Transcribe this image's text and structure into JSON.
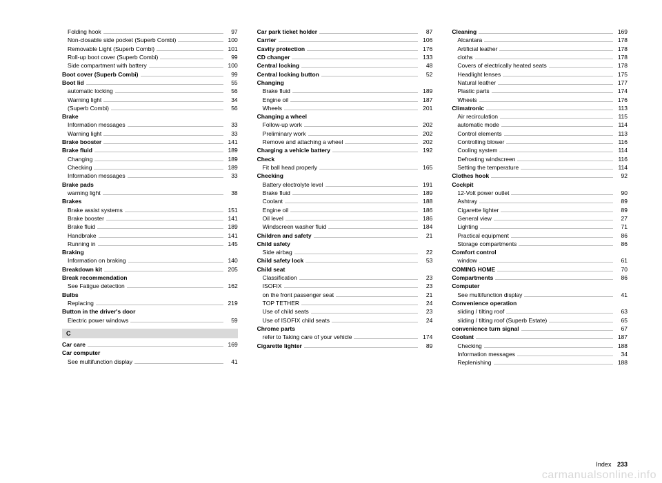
{
  "footer": {
    "label": "Index",
    "page": "233"
  },
  "watermark": "carmanualsonline.info",
  "section_letter": "C",
  "columns": [
    [
      {
        "label": "Folding hook",
        "page": "97",
        "bold": false,
        "sub": true
      },
      {
        "label": "Non-closable side pocket (Superb Combi)",
        "page": "100",
        "bold": false,
        "sub": true
      },
      {
        "label": "Removable Light (Superb Combi)",
        "page": "101",
        "bold": false,
        "sub": true
      },
      {
        "label": "Roll-up boot cover (Superb Combi)",
        "page": "99",
        "bold": false,
        "sub": true
      },
      {
        "label": "Side compartment with battery",
        "page": "100",
        "bold": false,
        "sub": true
      },
      {
        "label": "Boot cover (Superb Combi)",
        "page": "99",
        "bold": true,
        "sub": false
      },
      {
        "label": "Boot lid",
        "page": "55",
        "bold": true,
        "sub": false
      },
      {
        "label": "automatic locking",
        "page": "56",
        "bold": false,
        "sub": true
      },
      {
        "label": "Warning light",
        "page": "34",
        "bold": false,
        "sub": true
      },
      {
        "label": "(Superb Combi)",
        "page": "56",
        "bold": false,
        "sub": true
      },
      {
        "label": "Brake",
        "page": "",
        "bold": true,
        "sub": false
      },
      {
        "label": "Information messages",
        "page": "33",
        "bold": false,
        "sub": true
      },
      {
        "label": "Warning light",
        "page": "33",
        "bold": false,
        "sub": true
      },
      {
        "label": "Brake booster",
        "page": "141",
        "bold": true,
        "sub": false
      },
      {
        "label": "Brake fluid",
        "page": "189",
        "bold": true,
        "sub": false
      },
      {
        "label": "Changing",
        "page": "189",
        "bold": false,
        "sub": true
      },
      {
        "label": "Checking",
        "page": "189",
        "bold": false,
        "sub": true
      },
      {
        "label": "Information messages",
        "page": "33",
        "bold": false,
        "sub": true
      },
      {
        "label": "Brake pads",
        "page": "",
        "bold": true,
        "sub": false
      },
      {
        "label": "warning light",
        "page": "38",
        "bold": false,
        "sub": true
      },
      {
        "label": "Brakes",
        "page": "",
        "bold": true,
        "sub": false
      },
      {
        "label": "Brake assist systems",
        "page": "151",
        "bold": false,
        "sub": true
      },
      {
        "label": "Brake booster",
        "page": "141",
        "bold": false,
        "sub": true
      },
      {
        "label": "Brake fluid",
        "page": "189",
        "bold": false,
        "sub": true
      },
      {
        "label": "Handbrake",
        "page": "141",
        "bold": false,
        "sub": true
      },
      {
        "label": "Running in",
        "page": "145",
        "bold": false,
        "sub": true
      },
      {
        "label": "Braking",
        "page": "",
        "bold": true,
        "sub": false
      },
      {
        "label": "Information on braking",
        "page": "140",
        "bold": false,
        "sub": true
      },
      {
        "label": "Breakdown kit",
        "page": "205",
        "bold": true,
        "sub": false
      },
      {
        "label": "Break recommendation",
        "page": "",
        "bold": true,
        "sub": false
      },
      {
        "label": "See Fatigue detection",
        "page": "162",
        "bold": false,
        "sub": true
      },
      {
        "label": "Bulbs",
        "page": "",
        "bold": true,
        "sub": false
      },
      {
        "label": "Replacing",
        "page": "219",
        "bold": false,
        "sub": true
      },
      {
        "label": "Button in the driver's door",
        "page": "",
        "bold": true,
        "sub": false
      },
      {
        "label": "Electric power windows",
        "page": "59",
        "bold": false,
        "sub": true
      },
      {
        "section": "C"
      },
      {
        "label": "Car care",
        "page": "169",
        "bold": true,
        "sub": false
      },
      {
        "label": "Car computer",
        "page": "",
        "bold": true,
        "sub": false
      },
      {
        "label": "See multifunction display",
        "page": "41",
        "bold": false,
        "sub": true
      }
    ],
    [
      {
        "label": "Car park ticket holder",
        "page": "87",
        "bold": true,
        "sub": false
      },
      {
        "label": "Carrier",
        "page": "106",
        "bold": true,
        "sub": false
      },
      {
        "label": "Cavity protection",
        "page": "176",
        "bold": true,
        "sub": false
      },
      {
        "label": "CD changer",
        "page": "133",
        "bold": true,
        "sub": false
      },
      {
        "label": "Central locking",
        "page": "48",
        "bold": true,
        "sub": false
      },
      {
        "label": "Central locking button",
        "page": "52",
        "bold": true,
        "sub": false
      },
      {
        "label": "Changing",
        "page": "",
        "bold": true,
        "sub": false
      },
      {
        "label": "Brake fluid",
        "page": "189",
        "bold": false,
        "sub": true
      },
      {
        "label": "Engine oil",
        "page": "187",
        "bold": false,
        "sub": true
      },
      {
        "label": "Wheels",
        "page": "201",
        "bold": false,
        "sub": true
      },
      {
        "label": "Changing a wheel",
        "page": "",
        "bold": true,
        "sub": false
      },
      {
        "label": "Follow-up work",
        "page": "202",
        "bold": false,
        "sub": true
      },
      {
        "label": "Preliminary work",
        "page": "202",
        "bold": false,
        "sub": true
      },
      {
        "label": "Remove and attaching a wheel",
        "page": "202",
        "bold": false,
        "sub": true
      },
      {
        "label": "Charging a vehicle battery",
        "page": "192",
        "bold": true,
        "sub": false
      },
      {
        "label": "Check",
        "page": "",
        "bold": true,
        "sub": false
      },
      {
        "label": "Fit ball head properly",
        "page": "165",
        "bold": false,
        "sub": true
      },
      {
        "label": "Checking",
        "page": "",
        "bold": true,
        "sub": false
      },
      {
        "label": "Battery electrolyte level",
        "page": "191",
        "bold": false,
        "sub": true
      },
      {
        "label": "Brake fluid",
        "page": "189",
        "bold": false,
        "sub": true
      },
      {
        "label": "Coolant",
        "page": "188",
        "bold": false,
        "sub": true
      },
      {
        "label": "Engine oil",
        "page": "186",
        "bold": false,
        "sub": true
      },
      {
        "label": "Oil level",
        "page": "186",
        "bold": false,
        "sub": true
      },
      {
        "label": "Windscreen washer fluid",
        "page": "184",
        "bold": false,
        "sub": true
      },
      {
        "label": "Children and safety",
        "page": "21",
        "bold": true,
        "sub": false
      },
      {
        "label": "Child safety",
        "page": "",
        "bold": true,
        "sub": false
      },
      {
        "label": "Side airbag",
        "page": "22",
        "bold": false,
        "sub": true
      },
      {
        "label": "Child safety lock",
        "page": "53",
        "bold": true,
        "sub": false
      },
      {
        "label": "Child seat",
        "page": "",
        "bold": true,
        "sub": false
      },
      {
        "label": "Classification",
        "page": "23",
        "bold": false,
        "sub": true
      },
      {
        "label": "ISOFIX",
        "page": "23",
        "bold": false,
        "sub": true
      },
      {
        "label": "on the front passenger seat",
        "page": "21",
        "bold": false,
        "sub": true
      },
      {
        "label": "TOP TETHER",
        "page": "24",
        "bold": false,
        "sub": true
      },
      {
        "label": "Use of child seats",
        "page": "23",
        "bold": false,
        "sub": true
      },
      {
        "label": "Use of ISOFIX child seats",
        "page": "24",
        "bold": false,
        "sub": true
      },
      {
        "label": "Chrome parts",
        "page": "",
        "bold": true,
        "sub": false
      },
      {
        "label": "refer to Taking care of your vehicle",
        "page": "174",
        "bold": false,
        "sub": true
      },
      {
        "label": "Cigarette lighter",
        "page": "89",
        "bold": true,
        "sub": false
      }
    ],
    [
      {
        "label": "Cleaning",
        "page": "169",
        "bold": true,
        "sub": false
      },
      {
        "label": "Alcantara",
        "page": "178",
        "bold": false,
        "sub": true
      },
      {
        "label": "Artificial leather",
        "page": "178",
        "bold": false,
        "sub": true
      },
      {
        "label": "cloths",
        "page": "178",
        "bold": false,
        "sub": true
      },
      {
        "label": "Covers of electrically heated seats",
        "page": "178",
        "bold": false,
        "sub": true
      },
      {
        "label": "Headlight lenses",
        "page": "175",
        "bold": false,
        "sub": true
      },
      {
        "label": "Natural leather",
        "page": "177",
        "bold": false,
        "sub": true
      },
      {
        "label": "Plastic parts",
        "page": "174",
        "bold": false,
        "sub": true
      },
      {
        "label": "Wheels",
        "page": "176",
        "bold": false,
        "sub": true
      },
      {
        "label": "Climatronic",
        "page": "113",
        "bold": true,
        "sub": false
      },
      {
        "label": "Air recirculation",
        "page": "115",
        "bold": false,
        "sub": true
      },
      {
        "label": "automatic mode",
        "page": "114",
        "bold": false,
        "sub": true
      },
      {
        "label": "Control elements",
        "page": "113",
        "bold": false,
        "sub": true
      },
      {
        "label": "Controlling blower",
        "page": "116",
        "bold": false,
        "sub": true
      },
      {
        "label": "Cooling system",
        "page": "114",
        "bold": false,
        "sub": true
      },
      {
        "label": "Defrosting windscreen",
        "page": "116",
        "bold": false,
        "sub": true
      },
      {
        "label": "Setting the temperature",
        "page": "114",
        "bold": false,
        "sub": true
      },
      {
        "label": "Clothes hook",
        "page": "92",
        "bold": true,
        "sub": false
      },
      {
        "label": "Cockpit",
        "page": "",
        "bold": true,
        "sub": false
      },
      {
        "label": "12-Volt power outlet",
        "page": "90",
        "bold": false,
        "sub": true
      },
      {
        "label": "Ashtray",
        "page": "89",
        "bold": false,
        "sub": true
      },
      {
        "label": "Cigarette lighter",
        "page": "89",
        "bold": false,
        "sub": true
      },
      {
        "label": "General view",
        "page": "27",
        "bold": false,
        "sub": true
      },
      {
        "label": "Lighting",
        "page": "71",
        "bold": false,
        "sub": true
      },
      {
        "label": "Practical equipment",
        "page": "86",
        "bold": false,
        "sub": true
      },
      {
        "label": "Storage compartments",
        "page": "86",
        "bold": false,
        "sub": true
      },
      {
        "label": "Comfort control",
        "page": "",
        "bold": true,
        "sub": false
      },
      {
        "label": "window",
        "page": "61",
        "bold": false,
        "sub": true
      },
      {
        "label": "COMING HOME",
        "page": "70",
        "bold": true,
        "sub": false
      },
      {
        "label": "Compartments",
        "page": "86",
        "bold": true,
        "sub": false
      },
      {
        "label": "Computer",
        "page": "",
        "bold": true,
        "sub": false
      },
      {
        "label": "See multifunction display",
        "page": "41",
        "bold": false,
        "sub": true
      },
      {
        "label": "Convenience operation",
        "page": "",
        "bold": true,
        "sub": false
      },
      {
        "label": "sliding / tilting roof",
        "page": "63",
        "bold": false,
        "sub": true
      },
      {
        "label": "sliding / tilting roof (Superb Estate)",
        "page": "65",
        "bold": false,
        "sub": true
      },
      {
        "label": "convenience turn signal",
        "page": "67",
        "bold": true,
        "sub": false
      },
      {
        "label": "Coolant",
        "page": "187",
        "bold": true,
        "sub": false
      },
      {
        "label": "Checking",
        "page": "188",
        "bold": false,
        "sub": true
      },
      {
        "label": "Information messages",
        "page": "34",
        "bold": false,
        "sub": true
      },
      {
        "label": "Replenishing",
        "page": "188",
        "bold": false,
        "sub": true
      }
    ]
  ]
}
